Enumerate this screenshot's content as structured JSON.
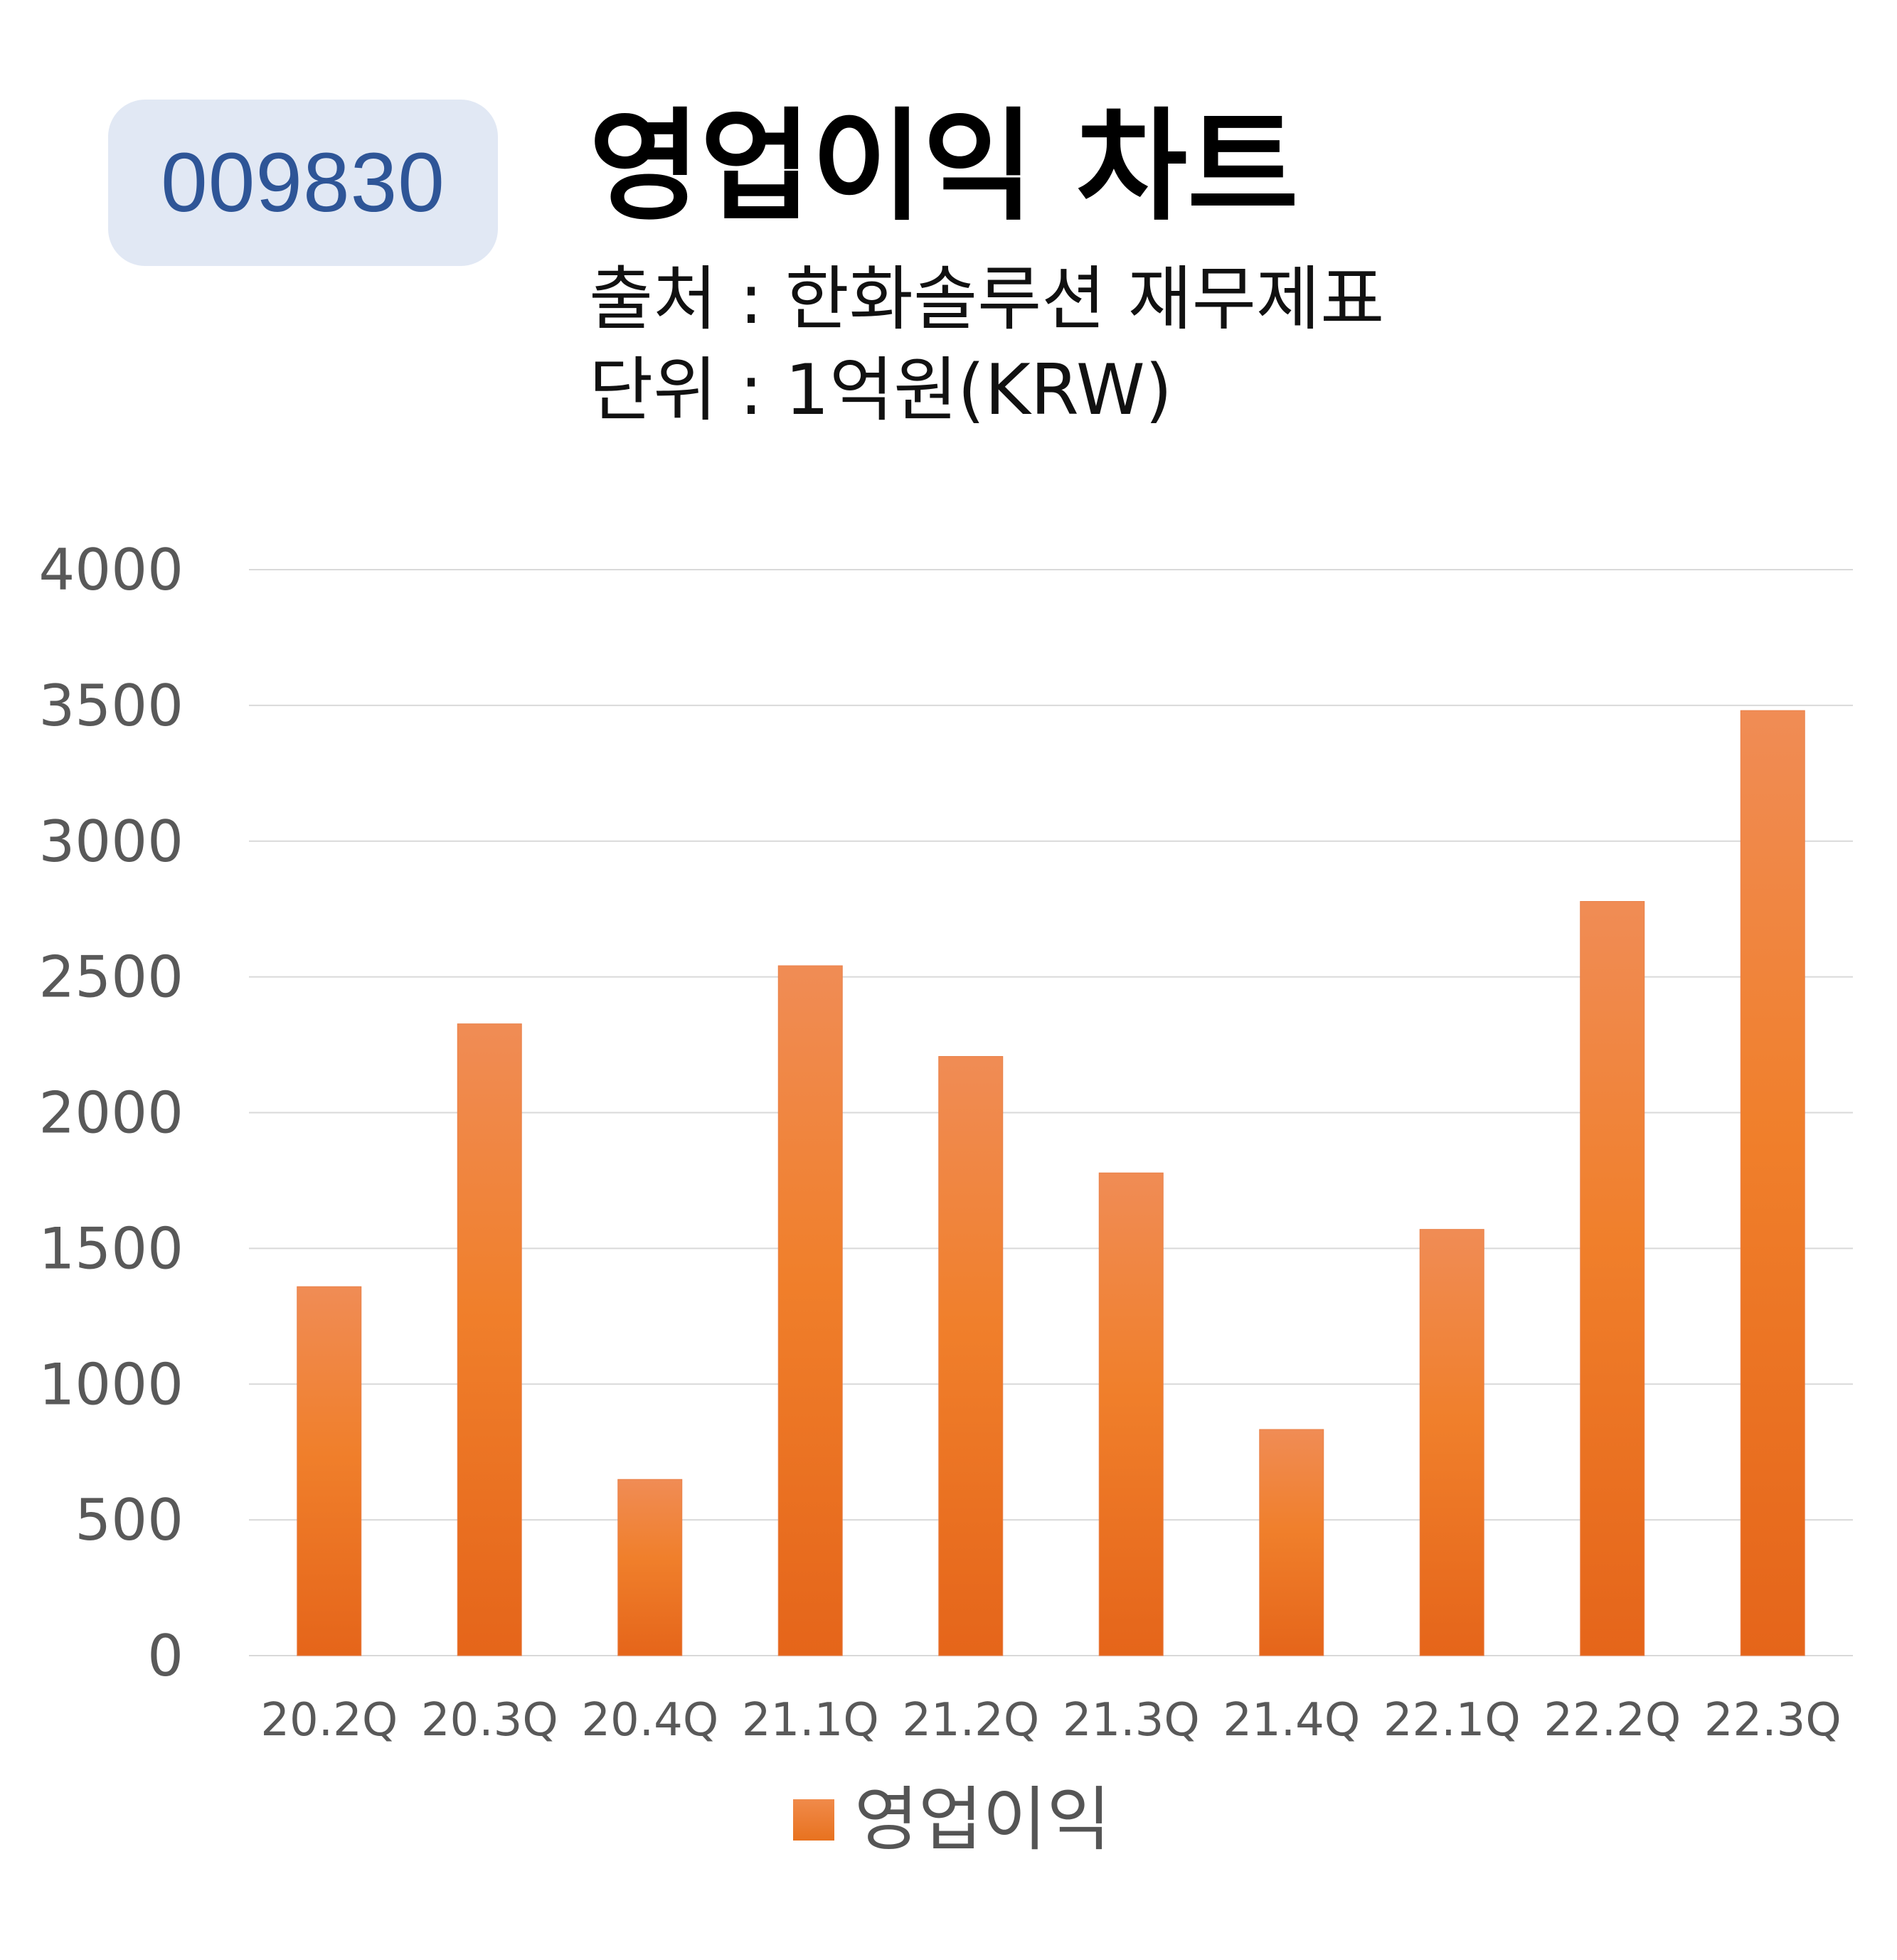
{
  "badge": {
    "code": "009830"
  },
  "header": {
    "title": "영업이익 차트",
    "source": "출처 : 한화솔루션 재무제표",
    "unit": "단위 : 1억원(KRW)"
  },
  "colors": {
    "bar_top": "#f08c55",
    "bar_mid": "#f07f2b",
    "bar_bottom": "#e5651a",
    "gridline": "#d9d9d9",
    "axis_text": "#595959",
    "badge_bg": "#e1e8f4",
    "badge_text": "#2e5597"
  },
  "chart_data": {
    "type": "bar",
    "title": "",
    "xlabel": "",
    "ylabel": "",
    "categories": [
      "20.2Q",
      "20.3Q",
      "20.4Q",
      "21.1Q",
      "21.2Q",
      "21.3Q",
      "21.4Q",
      "22.1Q",
      "22.2Q",
      "22.3Q"
    ],
    "series": [
      {
        "name": "영업이익",
        "values": [
          1359,
          2327,
          649,
          2541,
          2207,
          1778,
          833,
          1570,
          2778,
          3481
        ]
      }
    ],
    "ylim": [
      0,
      4000
    ],
    "yticks": [
      0,
      500,
      1000,
      1500,
      2000,
      2500,
      3000,
      3500,
      4000
    ],
    "grid": true,
    "legend_position": "bottom"
  }
}
